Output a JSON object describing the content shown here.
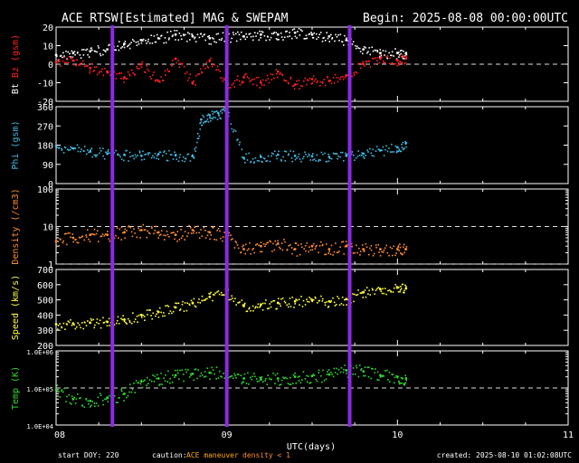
{
  "chart_data": {
    "type": "scatter",
    "title": "ACE RTSW[Estimated] MAG & SWEPAM",
    "begin_label": "Begin: 2025-08-08 00:00:00UTC",
    "xlabel": "UTC(days)",
    "x_ticks": [
      "08",
      "09",
      "10",
      "11"
    ],
    "xlim": [
      8,
      11
    ],
    "footer": {
      "start_doy": "start DOY: 220",
      "caution_label": "caution:",
      "caution_maneuver": "ACE maneuver",
      "caution_density": "density < 1",
      "created": "created: 2025-08-10 01:02:08UTC"
    },
    "maneuver_markers_days": [
      8.33,
      9.0,
      9.72
    ],
    "colors": {
      "bt": "#ffffff",
      "bz": "#ff2020",
      "phi": "#40b8e0",
      "density": "#ff8c30",
      "speed": "#ffff40",
      "temp": "#30d830",
      "marker": "#8a2be2",
      "caution_maneuver": "#ffaa00",
      "caution_density": "#ff8c30"
    },
    "panels": [
      {
        "id": "mag",
        "ylabel_parts": [
          {
            "text": "Bt",
            "color": "#ffffff"
          },
          {
            "text": " ",
            "color": "#ffffff"
          },
          {
            "text": "Bz",
            "color": "#ff2020"
          },
          {
            "text": " (gsm)",
            "color": "#ff2020"
          }
        ],
        "scale": "linear",
        "ylim": [
          -20,
          20
        ],
        "ticks": [
          "20",
          "10",
          "0",
          "-10",
          "-20"
        ],
        "tick_values": [
          20,
          10,
          0,
          -10,
          -20
        ],
        "ref_lines": [
          0
        ],
        "series": [
          {
            "name": "Bt",
            "color": "#ffffff",
            "x": [
              8.0,
              8.1,
              8.2,
              8.3,
              8.4,
              8.5,
              8.6,
              8.7,
              8.8,
              8.9,
              9.0,
              9.1,
              9.2,
              9.3,
              9.4,
              9.5,
              9.6,
              9.7,
              9.8,
              9.9,
              10.0,
              10.05
            ],
            "y": [
              5,
              6,
              7,
              8,
              11,
              13,
              14,
              16,
              15,
              14,
              15,
              15,
              16,
              16,
              17,
              16,
              15,
              13,
              8,
              6,
              6,
              6
            ]
          },
          {
            "name": "Bz",
            "color": "#ff2020",
            "x": [
              8.0,
              8.1,
              8.2,
              8.3,
              8.4,
              8.5,
              8.6,
              8.7,
              8.8,
              8.9,
              9.0,
              9.1,
              9.2,
              9.3,
              9.4,
              9.5,
              9.6,
              9.7,
              9.8,
              9.9,
              10.0,
              10.05
            ],
            "y": [
              1,
              2,
              -2,
              -4,
              -7,
              0,
              -9,
              3,
              -10,
              2,
              -11,
              -7,
              -10,
              -4,
              -11,
              -8,
              -9,
              -6,
              0,
              3,
              2,
              3
            ]
          }
        ]
      },
      {
        "id": "phi",
        "ylabel_parts": [
          {
            "text": "Phi (gsm)",
            "color": "#40b8e0"
          }
        ],
        "scale": "linear",
        "ylim": [
          0,
          360
        ],
        "ticks": [
          "360",
          "270",
          "180",
          "90",
          "0"
        ],
        "tick_values": [
          360,
          270,
          180,
          90,
          0
        ],
        "ref_lines": [],
        "series": [
          {
            "name": "Phi",
            "color": "#40b8e0",
            "x": [
              8.0,
              8.1,
              8.2,
              8.3,
              8.4,
              8.5,
              8.6,
              8.7,
              8.8,
              8.85,
              8.9,
              8.95,
              9.0,
              9.1,
              9.2,
              9.3,
              9.4,
              9.5,
              9.6,
              9.7,
              9.8,
              9.9,
              10.0,
              10.05
            ],
            "y": [
              175,
              165,
              150,
              140,
              135,
              130,
              138,
              132,
              128,
              300,
              320,
              330,
              340,
              120,
              125,
              135,
              130,
              128,
              125,
              130,
              140,
              155,
              170,
              190
            ]
          }
        ]
      },
      {
        "id": "density",
        "ylabel_parts": [
          {
            "text": "Density (/cm3)",
            "color": "#ff8c30"
          }
        ],
        "scale": "log",
        "ylim": [
          1,
          100
        ],
        "ticks": [
          "100",
          "10",
          "1"
        ],
        "tick_values": [
          100,
          10,
          1
        ],
        "ref_lines": [
          10,
          1
        ],
        "series": [
          {
            "name": "Density",
            "color": "#ff8c30",
            "x": [
              8.0,
              8.1,
              8.2,
              8.3,
              8.4,
              8.5,
              8.6,
              8.7,
              8.8,
              8.9,
              9.0,
              9.1,
              9.2,
              9.3,
              9.4,
              9.5,
              9.6,
              9.7,
              9.8,
              9.9,
              10.0,
              10.05
            ],
            "y": [
              4,
              5,
              6,
              6,
              7,
              8,
              7,
              6,
              8,
              7,
              6,
              2.5,
              3,
              3.5,
              2.5,
              3,
              2.5,
              3,
              2.5,
              2.5,
              2.5,
              2.5
            ]
          }
        ]
      },
      {
        "id": "speed",
        "ylabel_parts": [
          {
            "text": "Speed (km/s)",
            "color": "#ffff40"
          }
        ],
        "scale": "linear",
        "ylim": [
          200,
          700
        ],
        "ticks": [
          "700",
          "600",
          "500",
          "400",
          "300",
          "200"
        ],
        "tick_values": [
          700,
          600,
          500,
          400,
          300,
          200
        ],
        "ref_lines": [],
        "series": [
          {
            "name": "Speed",
            "color": "#ffff40",
            "x": [
              8.0,
              8.1,
              8.2,
              8.3,
              8.4,
              8.5,
              8.6,
              8.7,
              8.8,
              8.9,
              9.0,
              9.1,
              9.2,
              9.3,
              9.4,
              9.5,
              9.6,
              9.7,
              9.8,
              9.9,
              10.0,
              10.05
            ],
            "y": [
              340,
              345,
              350,
              355,
              370,
              400,
              420,
              450,
              480,
              520,
              545,
              460,
              470,
              480,
              490,
              500,
              490,
              505,
              550,
              570,
              580,
              575
            ]
          }
        ]
      },
      {
        "id": "temp",
        "ylabel_parts": [
          {
            "text": "Temp (K)",
            "color": "#30d830"
          }
        ],
        "scale": "log",
        "ylim": [
          10000,
          1000000
        ],
        "ticks": [
          "1.0E+06",
          "1.0E+05",
          "1.0E+04"
        ],
        "tick_values": [
          1000000,
          100000,
          10000
        ],
        "ref_lines": [
          100000
        ],
        "series": [
          {
            "name": "Temp",
            "color": "#30d830",
            "x": [
              8.0,
              8.1,
              8.2,
              8.3,
              8.4,
              8.5,
              8.6,
              8.7,
              8.8,
              8.9,
              9.0,
              9.1,
              9.2,
              9.3,
              9.4,
              9.5,
              9.6,
              9.7,
              9.8,
              9.9,
              10.0,
              10.05
            ],
            "y": [
              90000,
              50000,
              45000,
              55000,
              70000,
              150000,
              180000,
              220000,
              240000,
              260000,
              250000,
              180000,
              170000,
              180000,
              200000,
              210000,
              230000,
              300000,
              280000,
              220000,
              200000,
              180000
            ]
          }
        ]
      }
    ]
  }
}
